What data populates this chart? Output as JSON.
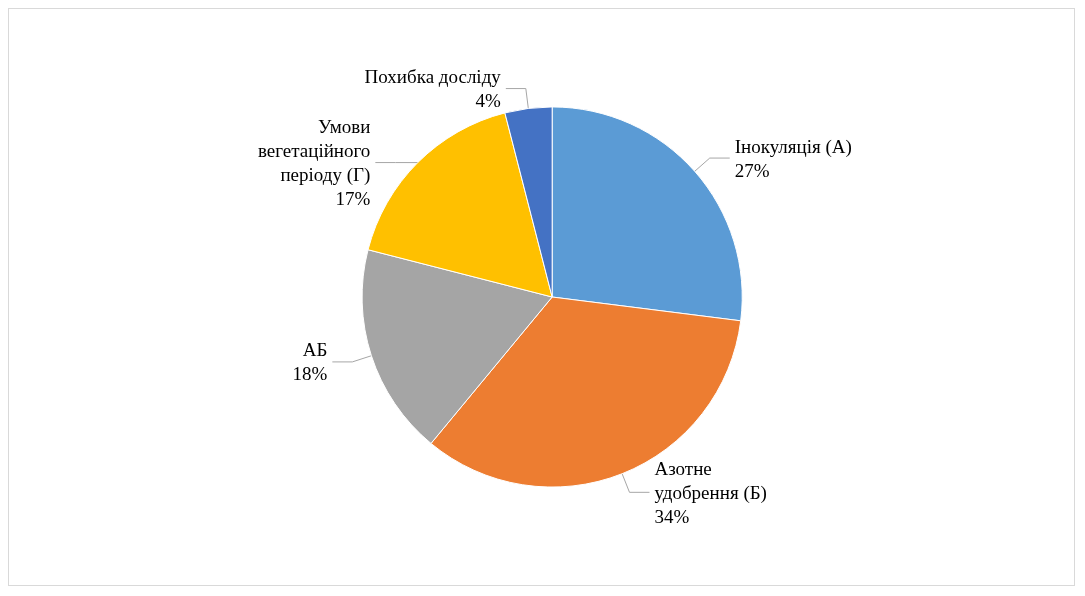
{
  "chart_data": {
    "type": "pie",
    "categories": [
      "Інокуляція (А)",
      "Азотне удобрення (Б)",
      "АБ",
      "Умови вегетаційного періоду (Г)",
      "Похибка досліду"
    ],
    "values": [
      27,
      34,
      18,
      17,
      4
    ],
    "colors": [
      "#5b9bd5",
      "#ed7d31",
      "#a5a5a5",
      "#ffc000",
      "#4472c4"
    ],
    "value_labels": [
      "27%",
      "34%",
      "18%",
      "17%",
      "4%"
    ],
    "legend": false
  }
}
